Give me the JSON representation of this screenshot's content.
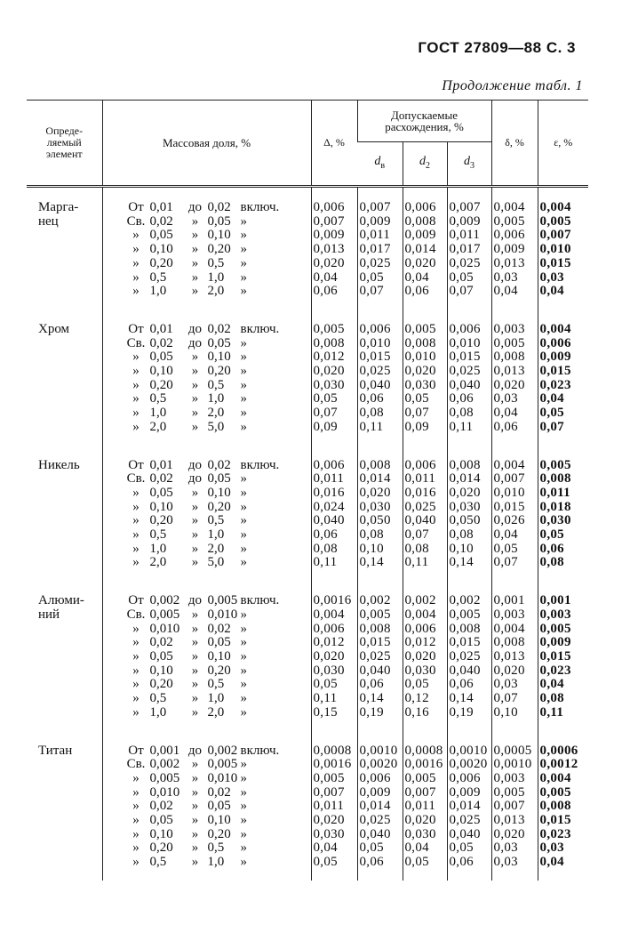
{
  "header": {
    "title": "ГОСТ 27809—88 С. 3",
    "caption": "Продолжение табл. 1"
  },
  "table": {
    "columns": {
      "element": "Опреде-\nляемый\nэлемент",
      "mass": "Массовая доля, %",
      "delta": "Δ, %",
      "allowed": "Допускаемые\nрасхождения, %",
      "d_b": {
        "main": "d",
        "sub": "в"
      },
      "d_2": {
        "main": "d",
        "sub": "2"
      },
      "d_3": {
        "main": "d",
        "sub": "3"
      },
      "small_delta": "δ, %",
      "epsilon": "ε, %"
    },
    "groups": [
      {
        "element": "Марга-\nнец",
        "mass": [
          [
            "От",
            "0,01",
            "до",
            "0,02",
            "включ."
          ],
          [
            "Св.",
            "0,02",
            "»",
            "0,05",
            "»"
          ],
          [
            "»",
            "0,05",
            "»",
            "0,10",
            "»"
          ],
          [
            "»",
            "0,10",
            "»",
            "0,20",
            "»"
          ],
          [
            "»",
            "0,20",
            "»",
            "0,5",
            "»"
          ],
          [
            "»",
            "0,5",
            "»",
            "1,0",
            "»"
          ],
          [
            "»",
            "1,0",
            "»",
            "2,0",
            "»"
          ]
        ],
        "values": [
          [
            "0,006",
            "0,007",
            "0,006",
            "0,007",
            "0,004",
            "0,004"
          ],
          [
            "0,007",
            "0,009",
            "0,008",
            "0,009",
            "0,005",
            "0,005"
          ],
          [
            "0,009",
            "0,011",
            "0,009",
            "0,011",
            "0,006",
            "0,007"
          ],
          [
            "0,013",
            "0,017",
            "0,014",
            "0,017",
            "0,009",
            "0,010"
          ],
          [
            "0,020",
            "0,025",
            "0,020",
            "0,025",
            "0,013",
            "0,015"
          ],
          [
            "0,04",
            "0,05",
            "0,04",
            "0,05",
            "0,03",
            "0,03"
          ],
          [
            "0,06",
            "0,07",
            "0,06",
            "0,07",
            "0,04",
            "0,04"
          ]
        ]
      },
      {
        "element": "Хром",
        "mass": [
          [
            "От",
            "0,01",
            "до",
            "0,02",
            "включ."
          ],
          [
            "Св.",
            "0,02",
            "до",
            "0,05",
            "»"
          ],
          [
            "»",
            "0,05",
            "»",
            "0,10",
            "»"
          ],
          [
            "»",
            "0,10",
            "»",
            "0,20",
            "»"
          ],
          [
            "»",
            "0,20",
            "»",
            "0,5",
            "»"
          ],
          [
            "»",
            "0,5",
            "»",
            "1,0",
            "»"
          ],
          [
            "»",
            "1,0",
            "»",
            "2,0",
            "»"
          ],
          [
            "»",
            "2,0",
            "»",
            "5,0",
            "»"
          ]
        ],
        "values": [
          [
            "0,005",
            "0,006",
            "0,005",
            "0,006",
            "0,003",
            "0,004"
          ],
          [
            "0,008",
            "0,010",
            "0,008",
            "0,010",
            "0,005",
            "0,006"
          ],
          [
            "0,012",
            "0,015",
            "0,010",
            "0,015",
            "0,008",
            "0,009"
          ],
          [
            "0,020",
            "0,025",
            "0,020",
            "0,025",
            "0,013",
            "0,015"
          ],
          [
            "0,030",
            "0,040",
            "0,030",
            "0,040",
            "0,020",
            "0,023"
          ],
          [
            "0,05",
            "0,06",
            "0,05",
            "0,06",
            "0,03",
            "0,04"
          ],
          [
            "0,07",
            "0,08",
            "0,07",
            "0,08",
            "0,04",
            "0,05"
          ],
          [
            "0,09",
            "0,11",
            "0,09",
            "0,11",
            "0,06",
            "0,07"
          ]
        ]
      },
      {
        "element": "Никель",
        "mass": [
          [
            "От",
            "0,01",
            "до",
            "0,02",
            "включ."
          ],
          [
            "Св.",
            "0,02",
            "до",
            "0,05",
            "»"
          ],
          [
            "»",
            "0,05",
            "»",
            "0,10",
            "»"
          ],
          [
            "»",
            "0,10",
            "»",
            "0,20",
            "»"
          ],
          [
            "»",
            "0,20",
            "»",
            "0,5",
            "»"
          ],
          [
            "»",
            "0,5",
            "»",
            "1,0",
            "»"
          ],
          [
            "»",
            "1,0",
            "»",
            "2,0",
            "»"
          ],
          [
            "»",
            "2,0",
            "»",
            "5,0",
            "»"
          ]
        ],
        "values": [
          [
            "0,006",
            "0,008",
            "0,006",
            "0,008",
            "0,004",
            "0,005"
          ],
          [
            "0,011",
            "0,014",
            "0,011",
            "0,014",
            "0,007",
            "0,008"
          ],
          [
            "0,016",
            "0,020",
            "0,016",
            "0,020",
            "0,010",
            "0,011"
          ],
          [
            "0,024",
            "0,030",
            "0,025",
            "0,030",
            "0,015",
            "0,018"
          ],
          [
            "0,040",
            "0,050",
            "0,040",
            "0,050",
            "0,026",
            "0,030"
          ],
          [
            "0,06",
            "0,08",
            "0,07",
            "0,08",
            "0,04",
            "0,05"
          ],
          [
            "0,08",
            "0,10",
            "0,08",
            "0,10",
            "0,05",
            "0,06"
          ],
          [
            "0,11",
            "0,14",
            "0,11",
            "0,14",
            "0,07",
            "0,08"
          ]
        ]
      },
      {
        "element": "Алюми-\nний",
        "mass": [
          [
            "От",
            "0,002",
            "до",
            "0,005",
            "включ."
          ],
          [
            "Св.",
            "0,005",
            "»",
            "0,010",
            "»"
          ],
          [
            "»",
            "0,010",
            "»",
            "0,02",
            "»"
          ],
          [
            "»",
            "0,02",
            "»",
            "0,05",
            "»"
          ],
          [
            "»",
            "0,05",
            "»",
            "0,10",
            "»"
          ],
          [
            "»",
            "0,10",
            "»",
            "0,20",
            "»"
          ],
          [
            "»",
            "0,20",
            "»",
            "0,5",
            "»"
          ],
          [
            "»",
            "0,5",
            "»",
            "1,0",
            "»"
          ],
          [
            "»",
            "1,0",
            "»",
            "2,0",
            "»"
          ]
        ],
        "values": [
          [
            "0,0016",
            "0,002",
            "0,002",
            "0,002",
            "0,001",
            "0,001"
          ],
          [
            "0,004",
            "0,005",
            "0,004",
            "0,005",
            "0,003",
            "0,003"
          ],
          [
            "0,006",
            "0,008",
            "0,006",
            "0,008",
            "0,004",
            "0,005"
          ],
          [
            "0,012",
            "0,015",
            "0,012",
            "0,015",
            "0,008",
            "0,009"
          ],
          [
            "0,020",
            "0,025",
            "0,020",
            "0,025",
            "0,013",
            "0,015"
          ],
          [
            "0,030",
            "0,040",
            "0,030",
            "0,040",
            "0,020",
            "0,023"
          ],
          [
            "0,05",
            "0,06",
            "0,05",
            "0,06",
            "0,03",
            "0,04"
          ],
          [
            "0,11",
            "0,14",
            "0,12",
            "0,14",
            "0,07",
            "0,08"
          ],
          [
            "0,15",
            "0,19",
            "0,16",
            "0,19",
            "0,10",
            "0,11"
          ]
        ]
      },
      {
        "element": "Титан",
        "mass": [
          [
            "От",
            "0,001",
            "до",
            "0,002",
            "включ."
          ],
          [
            "Св.",
            "0,002",
            "»",
            "0,005",
            "»"
          ],
          [
            "»",
            "0,005",
            "»",
            "0,010",
            "»"
          ],
          [
            "»",
            "0,010",
            "»",
            "0,02",
            "»"
          ],
          [
            "»",
            "0,02",
            "»",
            "0,05",
            "»"
          ],
          [
            "»",
            "0,05",
            "»",
            "0,10",
            "»"
          ],
          [
            "»",
            "0,10",
            "»",
            "0,20",
            "»"
          ],
          [
            "»",
            "0,20",
            "»",
            "0,5",
            "»"
          ],
          [
            "»",
            "0,5",
            "»",
            "1,0",
            "»"
          ]
        ],
        "values": [
          [
            "0,0008",
            "0,0010",
            "0,0008",
            "0,0010",
            "0,0005",
            "0,0006"
          ],
          [
            "0,0016",
            "0,0020",
            "0,0016",
            "0,0020",
            "0,0010",
            "0,0012"
          ],
          [
            "0,005",
            "0,006",
            "0,005",
            "0,006",
            "0,003",
            "0,004"
          ],
          [
            "0,007",
            "0,009",
            "0,007",
            "0,009",
            "0,005",
            "0,005"
          ],
          [
            "0,011",
            "0,014",
            "0,011",
            "0,014",
            "0,007",
            "0,008"
          ],
          [
            "0,020",
            "0,025",
            "0,020",
            "0,025",
            "0,013",
            "0,015"
          ],
          [
            "0,030",
            "0,040",
            "0,030",
            "0,040",
            "0,020",
            "0,023"
          ],
          [
            "0,04",
            "0,05",
            "0,04",
            "0,05",
            "0,03",
            "0,03"
          ],
          [
            "0,05",
            "0,06",
            "0,05",
            "0,06",
            "0,03",
            "0,04"
          ]
        ]
      }
    ]
  }
}
